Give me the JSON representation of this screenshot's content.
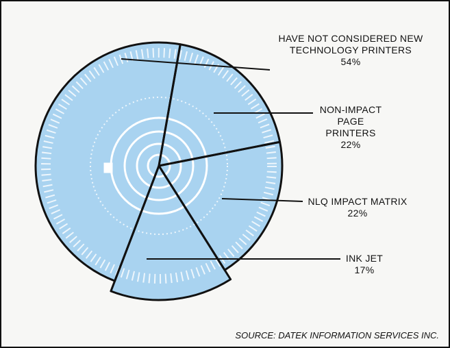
{
  "chart_data": {
    "type": "pie",
    "categories": [
      "NON-IMPACT PAGE PRINTERS",
      "NLQ IMPACT MATRIX",
      "INK JET",
      "HAVE NOT CONSIDERED NEW TECHNOLOGY PRINTERS"
    ],
    "values": [
      22,
      22,
      17,
      54
    ],
    "value_labels": [
      "22%",
      "22%",
      "17%",
      "54%"
    ],
    "color": "#a9d3f0",
    "source": "SOURCE: DATEK INFORMATION SERVICES INC."
  }
}
